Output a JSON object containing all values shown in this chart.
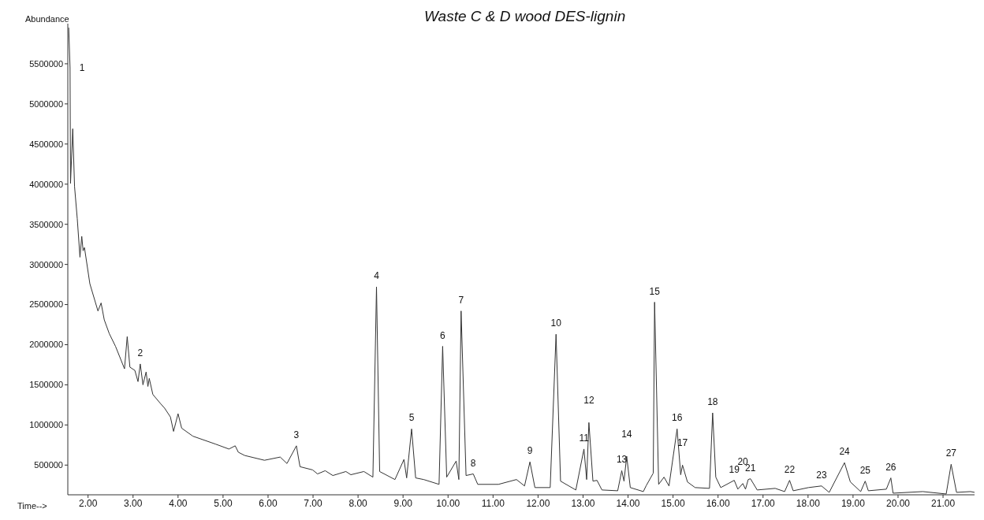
{
  "chart_data": {
    "type": "line",
    "title": "Waste C & D wood DES-lignin",
    "xlabel": "Time-->",
    "ylabel": "Abundance",
    "xlim": [
      1.55,
      21.7
    ],
    "ylim": [
      130000,
      6000000
    ],
    "xticks": [
      {
        "value": 2,
        "label": "2.00"
      },
      {
        "value": 3,
        "label": "3.00"
      },
      {
        "value": 4,
        "label": "4.00"
      },
      {
        "value": 5,
        "label": "5.00"
      },
      {
        "value": 6,
        "label": "6.00"
      },
      {
        "value": 7,
        "label": "7.00"
      },
      {
        "value": 8,
        "label": "8.00"
      },
      {
        "value": 9,
        "label": "9.00"
      },
      {
        "value": 10,
        "label": "10.00"
      },
      {
        "value": 11,
        "label": "11.00"
      },
      {
        "value": 12,
        "label": "12.00"
      },
      {
        "value": 13,
        "label": "13.00"
      },
      {
        "value": 14,
        "label": "14.00"
      },
      {
        "value": 15,
        "label": "15.00"
      },
      {
        "value": 16,
        "label": "16.00"
      },
      {
        "value": 17,
        "label": "17.00"
      },
      {
        "value": 18,
        "label": "18.00"
      },
      {
        "value": 19,
        "label": "19.00"
      },
      {
        "value": 20,
        "label": "20.00"
      },
      {
        "value": 21,
        "label": "21.00"
      }
    ],
    "yticks": [
      500000,
      1000000,
      1500000,
      2000000,
      2500000,
      3000000,
      3500000,
      4000000,
      4500000,
      5000000,
      5500000
    ],
    "grid": false,
    "legend": false,
    "marker": "none",
    "line_style": "solid",
    "series": [
      {
        "color": "#333333",
        "x": [
          1.57,
          1.6,
          1.61,
          1.66,
          1.7,
          1.76,
          1.82,
          1.86,
          1.89,
          1.92,
          2.04,
          2.22,
          2.29,
          2.36,
          2.47,
          2.61,
          2.81,
          2.87,
          2.93,
          3.04,
          3.11,
          3.16,
          3.22,
          3.29,
          3.33,
          3.36,
          3.44,
          3.62,
          3.7,
          3.83,
          3.9,
          4.0,
          4.08,
          4.33,
          4.84,
          5.13,
          5.27,
          5.34,
          5.48,
          5.92,
          6.27,
          6.42,
          6.63,
          6.71,
          6.99,
          7.1,
          7.27,
          7.44,
          7.73,
          7.84,
          8.13,
          8.33,
          8.41,
          8.48,
          8.82,
          9.02,
          9.08,
          9.19,
          9.28,
          9.46,
          9.8,
          9.88,
          9.97,
          10.18,
          10.24,
          10.29,
          10.4,
          10.56,
          10.66,
          11.12,
          11.52,
          11.7,
          11.82,
          11.93,
          12.27,
          12.4,
          12.5,
          12.84,
          13.02,
          13.08,
          13.13,
          13.22,
          13.31,
          13.42,
          13.77,
          13.86,
          13.91,
          13.97,
          14.05,
          14.34,
          14.4,
          14.56,
          14.59,
          14.68,
          14.8,
          14.91,
          15.09,
          15.17,
          15.21,
          15.32,
          15.49,
          15.81,
          15.88,
          15.95,
          16.06,
          16.36,
          16.44,
          16.55,
          16.61,
          16.67,
          16.72,
          16.87,
          17.27,
          17.48,
          17.59,
          17.67,
          18.01,
          18.3,
          18.47,
          18.81,
          18.94,
          19.17,
          19.27,
          19.34,
          19.74,
          19.84,
          19.89,
          20.55,
          21.07,
          21.18,
          21.3,
          21.61,
          21.7
        ],
        "values": [
          5950000,
          5450000,
          4010000,
          4690000,
          3970000,
          3570000,
          3090000,
          3350000,
          3170000,
          3210000,
          2760000,
          2420000,
          2520000,
          2310000,
          2140000,
          1980000,
          1700000,
          2100000,
          1720000,
          1680000,
          1540000,
          1760000,
          1500000,
          1660000,
          1480000,
          1580000,
          1380000,
          1260000,
          1210000,
          1100000,
          920000,
          1140000,
          960000,
          860000,
          760000,
          700000,
          740000,
          660000,
          620000,
          560000,
          600000,
          520000,
          740000,
          480000,
          440000,
          390000,
          430000,
          370000,
          420000,
          380000,
          420000,
          350000,
          2720000,
          420000,
          320000,
          570000,
          340000,
          950000,
          340000,
          320000,
          260000,
          1980000,
          350000,
          550000,
          320000,
          2420000,
          370000,
          390000,
          260000,
          260000,
          320000,
          240000,
          540000,
          220000,
          220000,
          2130000,
          300000,
          190000,
          700000,
          320000,
          1030000,
          300000,
          310000,
          190000,
          180000,
          430000,
          300000,
          610000,
          220000,
          170000,
          240000,
          400000,
          2530000,
          260000,
          350000,
          240000,
          950000,
          380000,
          500000,
          290000,
          220000,
          210000,
          1150000,
          350000,
          220000,
          310000,
          200000,
          270000,
          200000,
          320000,
          330000,
          190000,
          210000,
          170000,
          310000,
          180000,
          220000,
          240000,
          160000,
          530000,
          290000,
          170000,
          300000,
          180000,
          200000,
          340000,
          150000,
          170000,
          140000,
          510000,
          160000,
          170000,
          160000
        ]
      }
    ],
    "annotations": [
      {
        "text": "1",
        "x": 1.6,
        "y": 5450000
      },
      {
        "text": "2",
        "x": 3.16,
        "y": 1760000
      },
      {
        "text": "3",
        "x": 6.63,
        "y": 740000
      },
      {
        "text": "4",
        "x": 8.41,
        "y": 2720000
      },
      {
        "text": "5",
        "x": 9.19,
        "y": 950000
      },
      {
        "text": "6",
        "x": 9.88,
        "y": 1980000
      },
      {
        "text": "7",
        "x": 10.29,
        "y": 2420000
      },
      {
        "text": "8",
        "x": 10.56,
        "y": 390000
      },
      {
        "text": "9",
        "x": 11.82,
        "y": 540000
      },
      {
        "text": "10",
        "x": 12.4,
        "y": 2130000
      },
      {
        "text": "11",
        "x": 13.02,
        "y": 700000
      },
      {
        "text": "12",
        "x": 13.13,
        "y": 1030000
      },
      {
        "text": "13",
        "x": 13.86,
        "y": 430000
      },
      {
        "text": "14",
        "x": 13.97,
        "y": 610000
      },
      {
        "text": "15",
        "x": 14.59,
        "y": 2530000
      },
      {
        "text": "16",
        "x": 15.09,
        "y": 950000
      },
      {
        "text": "17",
        "x": 15.21,
        "y": 500000
      },
      {
        "text": "18",
        "x": 15.88,
        "y": 1150000
      },
      {
        "text": "19",
        "x": 16.36,
        "y": 310000
      },
      {
        "text": "20",
        "x": 16.55,
        "y": 270000
      },
      {
        "text": "21",
        "x": 16.72,
        "y": 330000
      },
      {
        "text": "22",
        "x": 17.59,
        "y": 310000
      },
      {
        "text": "23",
        "x": 18.3,
        "y": 240000
      },
      {
        "text": "24",
        "x": 18.81,
        "y": 530000
      },
      {
        "text": "25",
        "x": 19.27,
        "y": 300000
      },
      {
        "text": "26",
        "x": 19.84,
        "y": 340000
      },
      {
        "text": "27",
        "x": 21.18,
        "y": 510000
      }
    ]
  }
}
